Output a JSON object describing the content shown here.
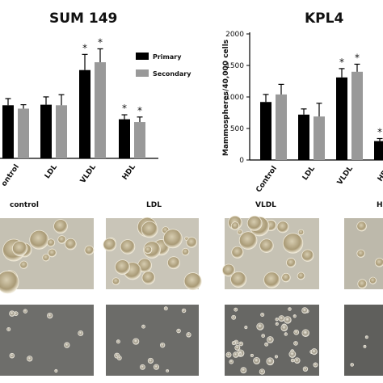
{
  "chart_data": [
    {
      "type": "bar",
      "title": "SUM 149",
      "categories": [
        "ontrol",
        "LDL",
        "VLDL",
        "HDL"
      ],
      "series": [
        {
          "name": "Primary",
          "values": [
            95,
            96,
            158,
            70
          ],
          "errors": [
            12,
            14,
            28,
            8
          ],
          "color": "#000000"
        },
        {
          "name": "Secondary",
          "values": [
            89,
            95,
            172,
            65
          ],
          "errors": [
            7,
            19,
            24,
            9
          ],
          "color": "#999999"
        }
      ],
      "significance": [
        [
          false,
          false,
          true,
          true
        ],
        [
          false,
          false,
          true,
          true
        ]
      ],
      "star_label": "*",
      "ylim": [
        0,
        240
      ],
      "legend_position": "top-right",
      "grid": false
    },
    {
      "type": "bar",
      "title": "KPL4",
      "categories": [
        "Control",
        "LDL",
        "VLDL",
        "HDL"
      ],
      "ylabel": "Mammospheres/40,000 cells",
      "yticks": [
        "0",
        "500",
        "1000",
        "1500",
        "2000"
      ],
      "ylim": [
        0,
        2000
      ],
      "series": [
        {
          "name": "Primary",
          "values": [
            920,
            720,
            1310,
            300
          ],
          "errors": [
            120,
            90,
            140,
            40
          ],
          "color": "#000000"
        },
        {
          "name": "Secondary",
          "values": [
            1040,
            690,
            1400,
            null
          ],
          "errors": [
            160,
            210,
            120,
            null
          ],
          "color": "#999999"
        }
      ],
      "significance": [
        [
          false,
          false,
          true,
          true
        ],
        [
          false,
          false,
          true,
          false
        ]
      ],
      "star_label": "*",
      "grid": false
    }
  ],
  "photo_panels": {
    "labels": [
      "control",
      "LDL",
      "VLDL",
      "H"
    ],
    "rows": 2,
    "description_colors": {
      "top_bg": "#c8c4b6",
      "bottom_bg": "#6b6b68",
      "sphere": "#b8aa88",
      "sphere_edge": "#f2eee2"
    }
  }
}
